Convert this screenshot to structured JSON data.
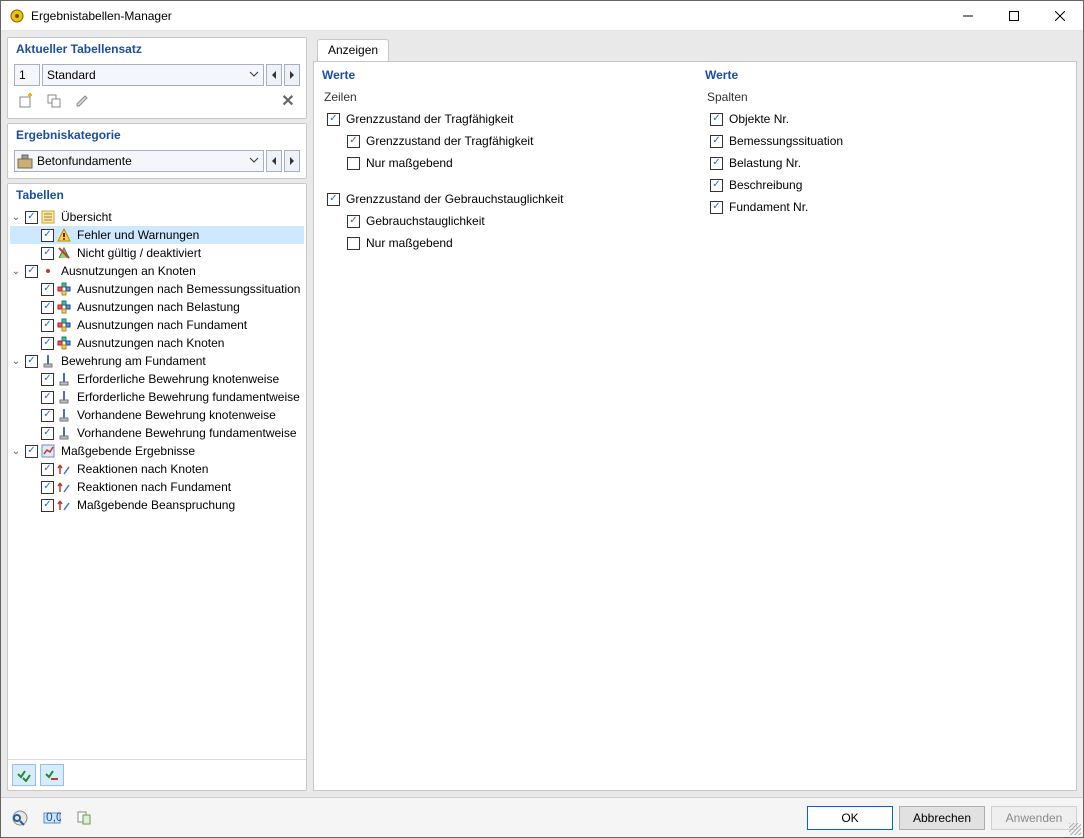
{
  "window": {
    "title": "Ergebnistabellen-Manager"
  },
  "colors": {
    "header_text": "#1a4ea0",
    "selected_row_bg": "#cde8ff",
    "btn_primary_border": "#0066cc",
    "window_border": "#646464",
    "body_bg": "#e9e9e9"
  },
  "left": {
    "tablesets": {
      "header": "Aktueller Tabellensatz",
      "number": "1",
      "name": "Standard"
    },
    "category": {
      "header": "Ergebniskategorie",
      "name": "Betonfundamente"
    },
    "tables": {
      "header": "Tabellen",
      "tree": [
        {
          "lvl": 0,
          "exp": "open",
          "ck": true,
          "icon": "overview",
          "label": "Übersicht"
        },
        {
          "lvl": 1,
          "ck": true,
          "icon": "warn",
          "label": "Fehler und Warnungen",
          "selected": true
        },
        {
          "lvl": 1,
          "ck": true,
          "icon": "invalid",
          "label": "Nicht gültig / deaktiviert"
        },
        {
          "lvl": 0,
          "exp": "open",
          "ck": true,
          "icon": "dot",
          "label": "Ausnutzungen an Knoten"
        },
        {
          "lvl": 1,
          "ck": true,
          "icon": "util",
          "label": "Ausnutzungen nach Bemessungssituation"
        },
        {
          "lvl": 1,
          "ck": true,
          "icon": "util",
          "label": "Ausnutzungen nach Belastung"
        },
        {
          "lvl": 1,
          "ck": true,
          "icon": "util",
          "label": "Ausnutzungen nach Fundament"
        },
        {
          "lvl": 1,
          "ck": true,
          "icon": "util",
          "label": "Ausnutzungen nach Knoten"
        },
        {
          "lvl": 0,
          "exp": "open",
          "ck": true,
          "icon": "rebar",
          "label": "Bewehrung am Fundament"
        },
        {
          "lvl": 1,
          "ck": true,
          "icon": "rebar",
          "label": "Erforderliche Bewehrung knotenweise"
        },
        {
          "lvl": 1,
          "ck": true,
          "icon": "rebar",
          "label": "Erforderliche Bewehrung fundamentweise"
        },
        {
          "lvl": 1,
          "ck": true,
          "icon": "rebar",
          "label": "Vorhandene Bewehrung knotenweise"
        },
        {
          "lvl": 1,
          "ck": true,
          "icon": "rebar",
          "label": "Vorhandene Bewehrung fundamentweise"
        },
        {
          "lvl": 0,
          "exp": "open",
          "ck": true,
          "icon": "result",
          "label": "Maßgebende Ergebnisse"
        },
        {
          "lvl": 1,
          "ck": true,
          "icon": "react",
          "label": "Reaktionen nach Knoten"
        },
        {
          "lvl": 1,
          "ck": true,
          "icon": "react",
          "label": "Reaktionen nach Fundament"
        },
        {
          "lvl": 1,
          "ck": true,
          "icon": "react",
          "label": "Maßgebende Beanspruchung"
        }
      ]
    }
  },
  "right": {
    "tab": "Anzeigen",
    "col1": {
      "header": "Werte",
      "sub": "Zeilen",
      "groups": [
        {
          "label": "Grenzzustand der Tragfähigkeit",
          "checked": true,
          "items": [
            {
              "label": "Grenzzustand der Tragfähigkeit",
              "checked": true
            },
            {
              "label": "Nur maßgebend",
              "checked": false
            }
          ]
        },
        {
          "label": "Grenzzustand der Gebrauchstauglichkeit",
          "checked": true,
          "items": [
            {
              "label": "Gebrauchstauglichkeit",
              "checked": true
            },
            {
              "label": "Nur maßgebend",
              "checked": false
            }
          ]
        }
      ]
    },
    "col2": {
      "header": "Werte",
      "sub": "Spalten",
      "items": [
        {
          "label": "Objekte Nr.",
          "checked": true
        },
        {
          "label": "Bemessungssituation",
          "checked": true
        },
        {
          "label": "Belastung Nr.",
          "checked": true
        },
        {
          "label": "Beschreibung",
          "checked": true
        },
        {
          "label": "Fundament Nr.",
          "checked": true
        }
      ]
    }
  },
  "footer": {
    "ok": "OK",
    "cancel": "Abbrechen",
    "apply": "Anwenden"
  }
}
